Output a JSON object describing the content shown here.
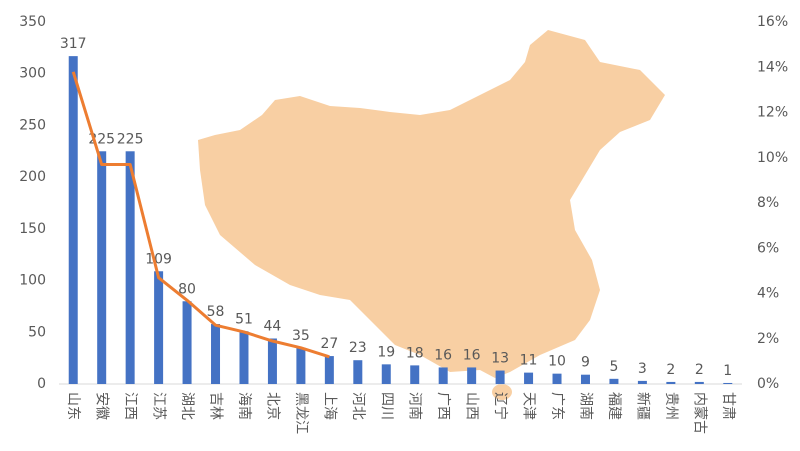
{
  "chart_data": {
    "type": "bar",
    "categories": [
      "山东",
      "安徽",
      "江西",
      "江苏",
      "湖北",
      "吉林",
      "海南",
      "北京",
      "黑龙江",
      "上海",
      "河北",
      "四川",
      "河南",
      "广西",
      "山西",
      "辽宁",
      "天津",
      "广东",
      "湖南",
      "福建",
      "新疆",
      "贵州",
      "内蒙古",
      "甘肃"
    ],
    "series": [
      {
        "type": "bar",
        "color": "#4472c4",
        "values": [
          317,
          225,
          225,
          109,
          80,
          58,
          51,
          44,
          35,
          27,
          23,
          19,
          18,
          16,
          16,
          13,
          11,
          10,
          9,
          5,
          3,
          2,
          2,
          1
        ]
      },
      {
        "type": "line",
        "axis": "y2",
        "color": "#ed7d31",
        "values": [
          13.8,
          9.7,
          9.7,
          4.7,
          3.7,
          2.6,
          2.3,
          1.9,
          1.6,
          1.2,
          null,
          null,
          null,
          null,
          null,
          null,
          null,
          null,
          null,
          null,
          null,
          null,
          null,
          null
        ]
      }
    ],
    "ylim": [
      0,
      350
    ],
    "yticks": [
      0,
      50,
      100,
      150,
      200,
      250,
      300,
      350
    ],
    "y2lim": [
      0,
      16
    ],
    "y2ticks": [
      {
        "value": 0,
        "label": "0%"
      },
      {
        "value": 2,
        "label": "2%"
      },
      {
        "value": 4,
        "label": "4%"
      },
      {
        "value": 6,
        "label": "6%"
      },
      {
        "value": 8,
        "label": "8%"
      },
      {
        "value": 10,
        "label": "10%"
      },
      {
        "value": 12,
        "label": "12%"
      },
      {
        "value": 14,
        "label": "14%"
      },
      {
        "value": 16,
        "label": "16%"
      }
    ],
    "data_labels": true
  }
}
